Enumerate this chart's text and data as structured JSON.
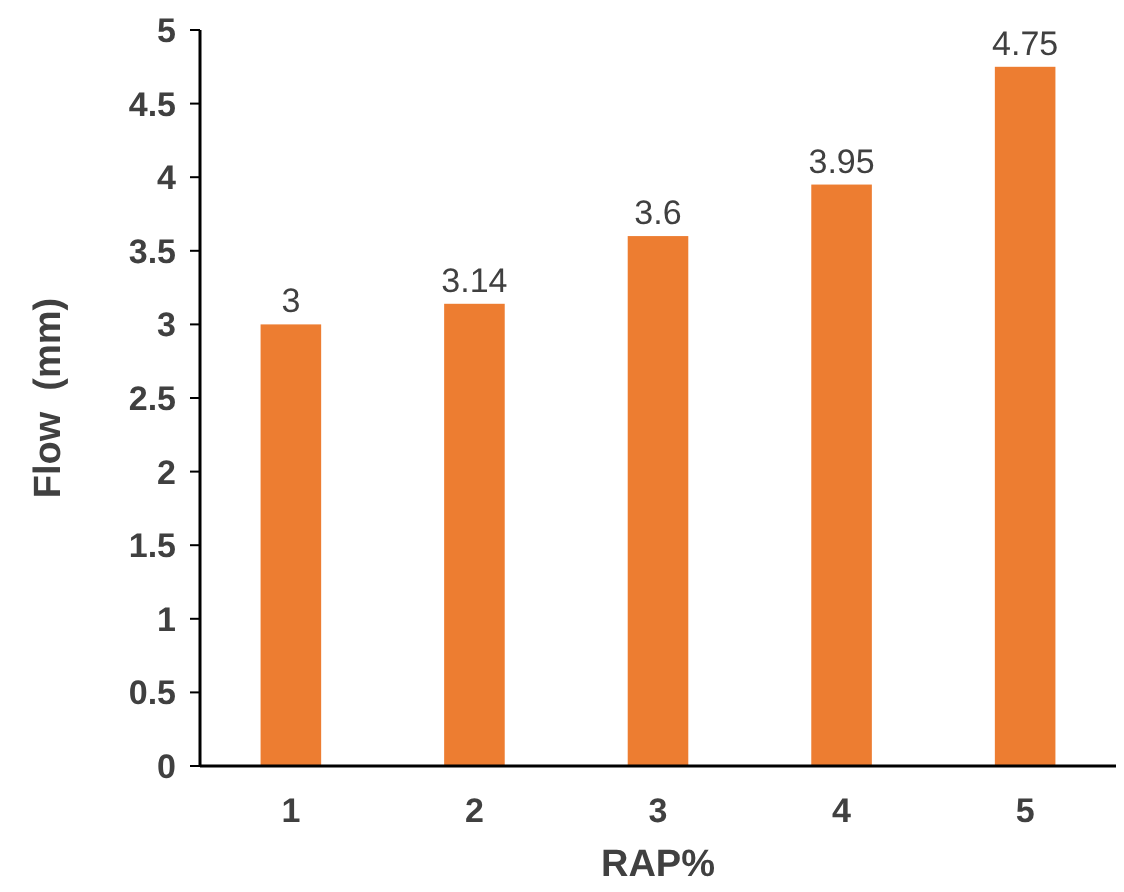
{
  "chart_data": {
    "type": "bar",
    "xlabel": "RAP%",
    "ylabel": "Flow  (mm)",
    "categories": [
      "1",
      "2",
      "3",
      "4",
      "5"
    ],
    "values": [
      3,
      3.14,
      3.6,
      3.95,
      4.75
    ],
    "color": "#ed7d31",
    "ylim": [
      0,
      5
    ],
    "yticks": [
      0,
      0.5,
      1,
      1.5,
      2,
      2.5,
      3,
      3.5,
      4,
      4.5,
      5
    ],
    "grid": false,
    "data_labels": true
  }
}
